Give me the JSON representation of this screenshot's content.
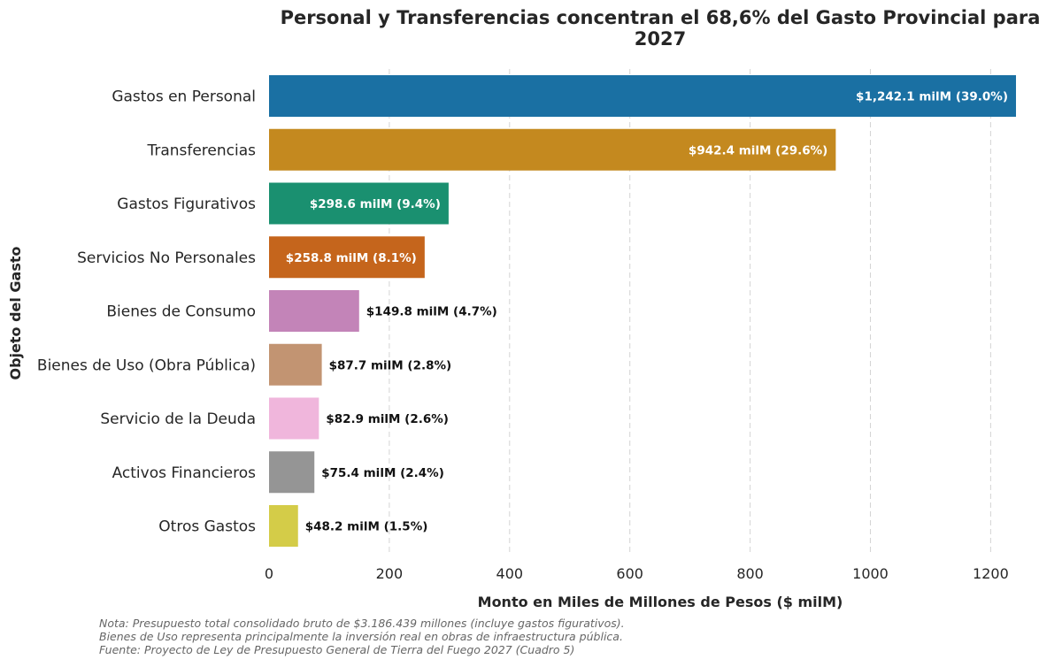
{
  "chart_data": {
    "type": "bar",
    "orientation": "horizontal",
    "title": "Personal y Transferencias concentran el 68,6% del Gasto Provincial para 2027",
    "title_lines": [
      "Personal y Transferencias concentran el 68,6% del Gasto Provincial para",
      "2027"
    ],
    "xlabel": "Monto en Miles de Millones de Pesos ($ milM)",
    "ylabel": "Objeto del Gasto",
    "xlim": [
      0,
      1280
    ],
    "xticks": [
      0,
      200,
      400,
      600,
      800,
      1000,
      1200
    ],
    "grid": "vertical dashed",
    "categories": [
      "Gastos en Personal",
      "Transferencias",
      "Gastos Figurativos",
      "Servicios No Personales",
      "Bienes de Consumo",
      "Bienes de Uso (Obra Pública)",
      "Servicio de la Deuda",
      "Activos Financieros",
      "Otros Gastos"
    ],
    "values": [
      1242.1,
      942.4,
      298.6,
      258.8,
      149.8,
      87.7,
      82.9,
      75.4,
      48.2
    ],
    "value_labels": [
      "$1,242.1 milM (39.0%)",
      "$942.4 milM (29.6%)",
      "$298.6 milM (9.4%)",
      "$258.8 milM (8.1%)",
      "$149.8 milM (4.7%)",
      "$87.7 milM (2.8%)",
      "$82.9 milM (2.6%)",
      "$75.4 milM (2.4%)",
      "$48.2 milM (1.5%)"
    ],
    "label_inside": [
      true,
      true,
      true,
      true,
      false,
      false,
      false,
      false,
      false
    ],
    "colors": [
      "#1a70a3",
      "#c4891f",
      "#1a9070",
      "#c5651c",
      "#c384b8",
      "#c29472",
      "#f0b6dc",
      "#959595",
      "#d4cc48"
    ]
  },
  "notes": [
    "Nota: Presupuesto total consolidado bruto de $3.186.439 millones (incluye gastos figurativos).",
    "Bienes de Uso representa principalmente la inversión real en obras de infraestructura pública.",
    "Fuente: Proyecto de Ley de Presupuesto General de Tierra del Fuego 2027 (Cuadro 5)"
  ]
}
